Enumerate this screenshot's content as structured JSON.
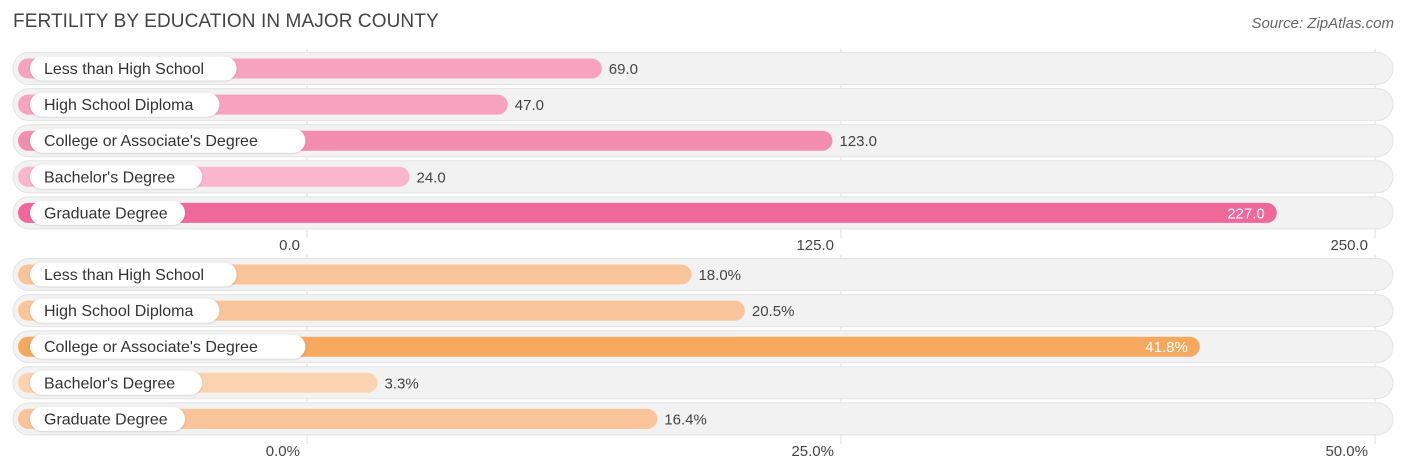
{
  "title": "FERTILITY BY EDUCATION IN MAJOR COUNTY",
  "source": "Source: ZipAtlas.com",
  "chart_data": [
    {
      "type": "bar",
      "orientation": "horizontal",
      "categories": [
        "Less than High School",
        "High School Diploma",
        "College or Associate's Degree",
        "Bachelor's Degree",
        "Graduate Degree"
      ],
      "values": [
        69.0,
        47.0,
        123.0,
        24.0,
        227.0
      ],
      "value_labels": [
        "69.0",
        "47.0",
        "123.0",
        "24.0",
        "227.0"
      ],
      "xlim": [
        0,
        250
      ],
      "ticks": [
        0,
        125,
        250
      ],
      "tick_labels": [
        "0.0",
        "125.0",
        "250.0"
      ],
      "colors": [
        "#f7a3c0",
        "#f7a3c0",
        "#f28db0",
        "#f9b6cd",
        "#f0679a"
      ],
      "highlight_color": "#f0679a",
      "grid": true
    },
    {
      "type": "bar",
      "orientation": "horizontal",
      "categories": [
        "Less than High School",
        "High School Diploma",
        "College or Associate's Degree",
        "Bachelor's Degree",
        "Graduate Degree"
      ],
      "values": [
        18.0,
        20.5,
        41.8,
        3.3,
        16.4
      ],
      "value_labels": [
        "18.0%",
        "20.5%",
        "41.8%",
        "3.3%",
        "16.4%"
      ],
      "xlim": [
        0,
        50
      ],
      "ticks": [
        0,
        25,
        50
      ],
      "tick_labels": [
        "0.0%",
        "25.0%",
        "50.0%"
      ],
      "colors": [
        "#f9c499",
        "#f9c499",
        "#f6a95e",
        "#fbd3b0",
        "#f9c499"
      ],
      "highlight_color": "#f6a95e",
      "grid": true
    }
  ]
}
